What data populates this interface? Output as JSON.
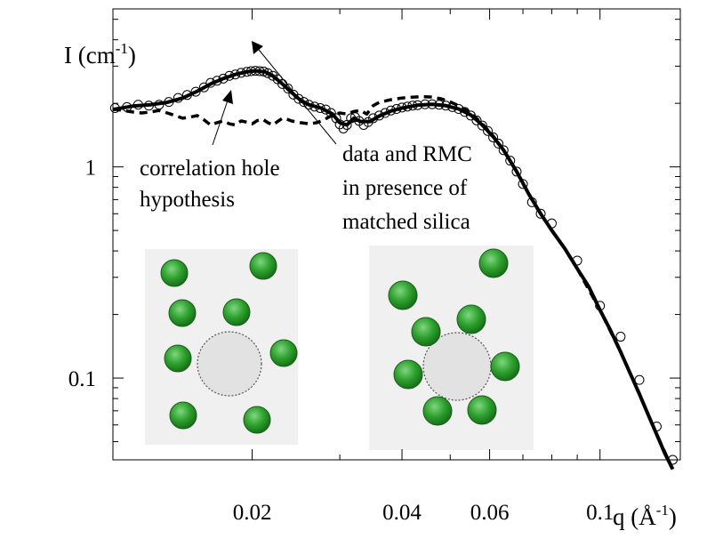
{
  "chart_data": {
    "type": "line",
    "x_scale": "log",
    "y_scale": "log",
    "xlim": [
      0.0105,
      0.145
    ],
    "ylim": [
      0.041,
      5.6
    ],
    "x_ticks": [
      {
        "value": 0.02,
        "label": "0.02"
      },
      {
        "value": 0.04,
        "label": "0.04"
      },
      {
        "value": 0.06,
        "label": "0.06"
      },
      {
        "value": 0.1,
        "label": "0.1"
      }
    ],
    "y_ticks": [
      {
        "value": 0.1,
        "label": "0.1"
      },
      {
        "value": 1,
        "label": "1"
      }
    ],
    "x_minor_ticks": [
      0.03,
      0.05,
      0.07,
      0.08,
      0.09
    ],
    "y_minor_ticks": [
      0.05,
      0.06,
      0.07,
      0.08,
      0.09,
      0.2,
      0.3,
      0.4,
      0.5,
      0.6,
      0.7,
      0.8,
      0.9,
      2,
      3,
      4,
      5
    ],
    "xlabel": {
      "text": "q (Å",
      "sup": "-1",
      "close": ")"
    },
    "ylabel": {
      "text": "I (cm",
      "sup": "-1",
      "close": ")"
    },
    "series": [
      {
        "style": "open-circles",
        "points": [
          [
            0.0106,
            1.9
          ],
          [
            0.0112,
            1.92
          ],
          [
            0.0118,
            1.97
          ],
          [
            0.0124,
            1.95
          ],
          [
            0.013,
            1.97
          ],
          [
            0.0136,
            2.03
          ],
          [
            0.0142,
            2.12
          ],
          [
            0.0148,
            2.19
          ],
          [
            0.0154,
            2.27
          ],
          [
            0.016,
            2.38
          ],
          [
            0.0165,
            2.5
          ],
          [
            0.017,
            2.56
          ],
          [
            0.0175,
            2.62
          ],
          [
            0.018,
            2.7
          ],
          [
            0.0185,
            2.74
          ],
          [
            0.019,
            2.79
          ],
          [
            0.0195,
            2.82
          ],
          [
            0.0199,
            2.84
          ],
          [
            0.0203,
            2.85
          ],
          [
            0.0207,
            2.84
          ],
          [
            0.0211,
            2.83
          ],
          [
            0.0215,
            2.78
          ],
          [
            0.022,
            2.7
          ],
          [
            0.0225,
            2.6
          ],
          [
            0.023,
            2.47
          ],
          [
            0.0236,
            2.35
          ],
          [
            0.0242,
            2.2
          ],
          [
            0.0248,
            2.1
          ],
          [
            0.0254,
            2.03
          ],
          [
            0.026,
            1.97
          ],
          [
            0.0267,
            1.93
          ],
          [
            0.0274,
            1.9
          ],
          [
            0.0281,
            1.87
          ],
          [
            0.0288,
            1.8
          ],
          [
            0.0295,
            1.7
          ],
          [
            0.03,
            1.59
          ],
          [
            0.0305,
            1.52
          ],
          [
            0.031,
            1.58
          ],
          [
            0.0316,
            1.7
          ],
          [
            0.0322,
            1.72
          ],
          [
            0.0328,
            1.65
          ],
          [
            0.0335,
            1.58
          ],
          [
            0.0342,
            1.63
          ],
          [
            0.035,
            1.7
          ],
          [
            0.036,
            1.75
          ],
          [
            0.037,
            1.8
          ],
          [
            0.038,
            1.85
          ],
          [
            0.039,
            1.88
          ],
          [
            0.04,
            1.91
          ],
          [
            0.041,
            1.93
          ],
          [
            0.042,
            1.95
          ],
          [
            0.043,
            1.96
          ],
          [
            0.0445,
            1.98
          ],
          [
            0.046,
            1.98
          ],
          [
            0.0475,
            1.97
          ],
          [
            0.049,
            1.95
          ],
          [
            0.0505,
            1.92
          ],
          [
            0.052,
            1.88
          ],
          [
            0.0535,
            1.82
          ],
          [
            0.055,
            1.75
          ],
          [
            0.0565,
            1.66
          ],
          [
            0.058,
            1.57
          ],
          [
            0.0595,
            1.48
          ],
          [
            0.061,
            1.38
          ],
          [
            0.0625,
            1.29
          ],
          [
            0.064,
            1.2
          ],
          [
            0.066,
            1.07
          ],
          [
            0.068,
            0.95
          ],
          [
            0.07,
            0.83
          ],
          [
            0.073,
            0.68
          ],
          [
            0.076,
            0.6
          ],
          [
            0.08,
            0.54
          ],
          [
            0.09,
            0.36
          ],
          [
            0.1,
            0.22
          ],
          [
            0.11,
            0.157
          ],
          [
            0.12,
            0.098
          ],
          [
            0.13,
            0.059
          ],
          [
            0.14,
            0.041
          ]
        ]
      },
      {
        "style": "solid",
        "points": [
          [
            0.0105,
            1.87
          ],
          [
            0.0115,
            1.94
          ],
          [
            0.0125,
            1.97
          ],
          [
            0.0135,
            2.02
          ],
          [
            0.0145,
            2.12
          ],
          [
            0.0155,
            2.28
          ],
          [
            0.0165,
            2.47
          ],
          [
            0.0175,
            2.62
          ],
          [
            0.0185,
            2.74
          ],
          [
            0.0195,
            2.82
          ],
          [
            0.0203,
            2.85
          ],
          [
            0.0212,
            2.82
          ],
          [
            0.022,
            2.7
          ],
          [
            0.023,
            2.47
          ],
          [
            0.024,
            2.25
          ],
          [
            0.025,
            2.07
          ],
          [
            0.026,
            1.97
          ],
          [
            0.0275,
            1.9
          ],
          [
            0.029,
            1.78
          ],
          [
            0.03,
            1.62
          ],
          [
            0.031,
            1.58
          ],
          [
            0.032,
            1.7
          ],
          [
            0.033,
            1.64
          ],
          [
            0.0345,
            1.64
          ],
          [
            0.036,
            1.74
          ],
          [
            0.038,
            1.84
          ],
          [
            0.04,
            1.9
          ],
          [
            0.043,
            1.96
          ],
          [
            0.046,
            1.98
          ],
          [
            0.049,
            1.95
          ],
          [
            0.052,
            1.88
          ],
          [
            0.055,
            1.76
          ],
          [
            0.058,
            1.58
          ],
          [
            0.061,
            1.39
          ],
          [
            0.064,
            1.2
          ],
          [
            0.068,
            0.95
          ],
          [
            0.072,
            0.74
          ],
          [
            0.076,
            0.6
          ],
          [
            0.08,
            0.5
          ],
          [
            0.085,
            0.41
          ],
          [
            0.09,
            0.33
          ],
          [
            0.095,
            0.27
          ],
          [
            0.1,
            0.21
          ],
          [
            0.105,
            0.168
          ],
          [
            0.11,
            0.133
          ],
          [
            0.115,
            0.105
          ],
          [
            0.12,
            0.084
          ],
          [
            0.125,
            0.067
          ],
          [
            0.13,
            0.054
          ],
          [
            0.135,
            0.044
          ],
          [
            0.14,
            0.037
          ]
        ]
      },
      {
        "style": "dashed",
        "points": [
          [
            0.0105,
            1.88
          ],
          [
            0.0115,
            1.82
          ],
          [
            0.012,
            1.8
          ],
          [
            0.0125,
            1.82
          ],
          [
            0.013,
            1.85
          ],
          [
            0.0135,
            1.8
          ],
          [
            0.014,
            1.75
          ],
          [
            0.0145,
            1.7
          ],
          [
            0.015,
            1.72
          ],
          [
            0.0155,
            1.75
          ],
          [
            0.016,
            1.67
          ],
          [
            0.0165,
            1.58
          ],
          [
            0.017,
            1.62
          ],
          [
            0.0175,
            1.65
          ],
          [
            0.018,
            1.6
          ],
          [
            0.0185,
            1.58
          ],
          [
            0.019,
            1.65
          ],
          [
            0.0195,
            1.63
          ],
          [
            0.02,
            1.6
          ],
          [
            0.0205,
            1.66
          ],
          [
            0.021,
            1.68
          ],
          [
            0.0215,
            1.62
          ],
          [
            0.022,
            1.58
          ],
          [
            0.0225,
            1.64
          ],
          [
            0.023,
            1.7
          ],
          [
            0.0235,
            1.68
          ],
          [
            0.024,
            1.65
          ],
          [
            0.025,
            1.62
          ],
          [
            0.026,
            1.6
          ],
          [
            0.027,
            1.62
          ],
          [
            0.028,
            1.68
          ],
          [
            0.029,
            1.76
          ],
          [
            0.03,
            1.8
          ],
          [
            0.031,
            1.78
          ],
          [
            0.032,
            1.83
          ],
          [
            0.033,
            1.85
          ],
          [
            0.034,
            1.78
          ],
          [
            0.035,
            1.95
          ],
          [
            0.036,
            2.02
          ],
          [
            0.038,
            2.08
          ],
          [
            0.04,
            2.12
          ],
          [
            0.042,
            2.14
          ],
          [
            0.044,
            2.15
          ],
          [
            0.046,
            2.14
          ],
          [
            0.048,
            2.1
          ],
          [
            0.05,
            2.03
          ],
          [
            0.052,
            1.95
          ],
          [
            0.055,
            1.8
          ],
          [
            0.058,
            1.6
          ],
          [
            0.061,
            1.4
          ],
          [
            0.064,
            1.2
          ],
          [
            0.068,
            0.95
          ],
          [
            0.072,
            0.74
          ],
          [
            0.076,
            0.6
          ],
          [
            0.08,
            0.5
          ],
          [
            0.085,
            0.41
          ],
          [
            0.09,
            0.33
          ],
          [
            0.1,
            0.21
          ],
          [
            0.11,
            0.133
          ],
          [
            0.12,
            0.084
          ],
          [
            0.13,
            0.054
          ],
          [
            0.14,
            0.037
          ]
        ]
      }
    ],
    "annotations": [
      {
        "lines": [
          "correlation hole",
          "hypothesis"
        ]
      },
      {
        "lines": [
          "data and RMC",
          "in presence of",
          "matched silica"
        ]
      }
    ],
    "inset_colors": {
      "panel": "#f0f0f0",
      "particle": "#2ea12e",
      "particle_edge": "#1a5c1a",
      "hole": "#e2e2e2",
      "hole_edge": "#555555"
    }
  }
}
